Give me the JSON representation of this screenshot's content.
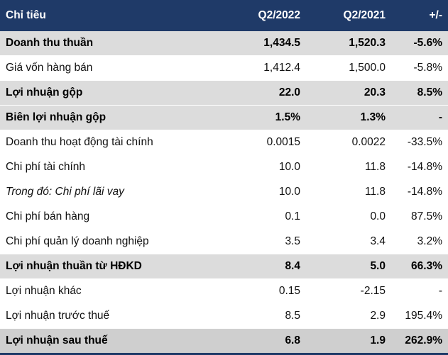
{
  "header": {
    "col_label": "Chỉ tiêu",
    "col_q2_2022": "Q2/2022",
    "col_q2_2021": "Q2/2021",
    "col_change": "+/-"
  },
  "rows": [
    {
      "label": "Doanh thu thuần",
      "q2_2022": "1,434.5",
      "q2_2021": "1,520.3",
      "change": "-5.6%",
      "style": "bold"
    },
    {
      "label": "Giá vốn hàng bán",
      "q2_2022": "1,412.4",
      "q2_2021": "1,500.0",
      "change": "-5.8%",
      "style": "plain"
    },
    {
      "label": "Lợi nhuận gộp",
      "q2_2022": "22.0",
      "q2_2021": "20.3",
      "change": "8.5%",
      "style": "bold"
    },
    {
      "label": "Biên lợi nhuận gộp",
      "q2_2022": "1.5%",
      "q2_2021": "1.3%",
      "change": "-",
      "style": "bold"
    },
    {
      "label": "Doanh thu hoạt động tài chính",
      "q2_2022": "0.0015",
      "q2_2021": "0.0022",
      "change": "-33.5%",
      "style": "plain"
    },
    {
      "label": "Chi phí tài chính",
      "q2_2022": "10.0",
      "q2_2021": "11.8",
      "change": "-14.8%",
      "style": "plain"
    },
    {
      "label": "Trong đó: Chi phí lãi vay",
      "q2_2022": "10.0",
      "q2_2021": "11.8",
      "change": "-14.8%",
      "style": "italic"
    },
    {
      "label": "Chi phí bán hàng",
      "q2_2022": "0.1",
      "q2_2021": "0.0",
      "change": "87.5%",
      "style": "plain"
    },
    {
      "label": "Chi phí quản lý doanh nghiệp",
      "q2_2022": "3.5",
      "q2_2021": "3.4",
      "change": "3.2%",
      "style": "plain"
    },
    {
      "label": "Lợi nhuận thuần từ HĐKD",
      "q2_2022": "8.4",
      "q2_2021": "5.0",
      "change": "66.3%",
      "style": "bold"
    },
    {
      "label": "Lợi nhuận khác",
      "q2_2022": "0.15",
      "q2_2021": "-2.15",
      "change": "-",
      "style": "plain"
    },
    {
      "label": "Lợi nhuận trước thuế",
      "q2_2022": "8.5",
      "q2_2021": "2.9",
      "change": "195.4%",
      "style": "plain"
    },
    {
      "label": "Lợi nhuận sau thuế",
      "q2_2022": "6.8",
      "q2_2021": "1.9",
      "change": "262.9%",
      "style": "bold"
    }
  ],
  "colors": {
    "header_bg": "#1f3a68",
    "header_text": "#ffffff",
    "bold_row_bg": "#dcdcdc",
    "plain_row_bg": "#ffffff"
  }
}
